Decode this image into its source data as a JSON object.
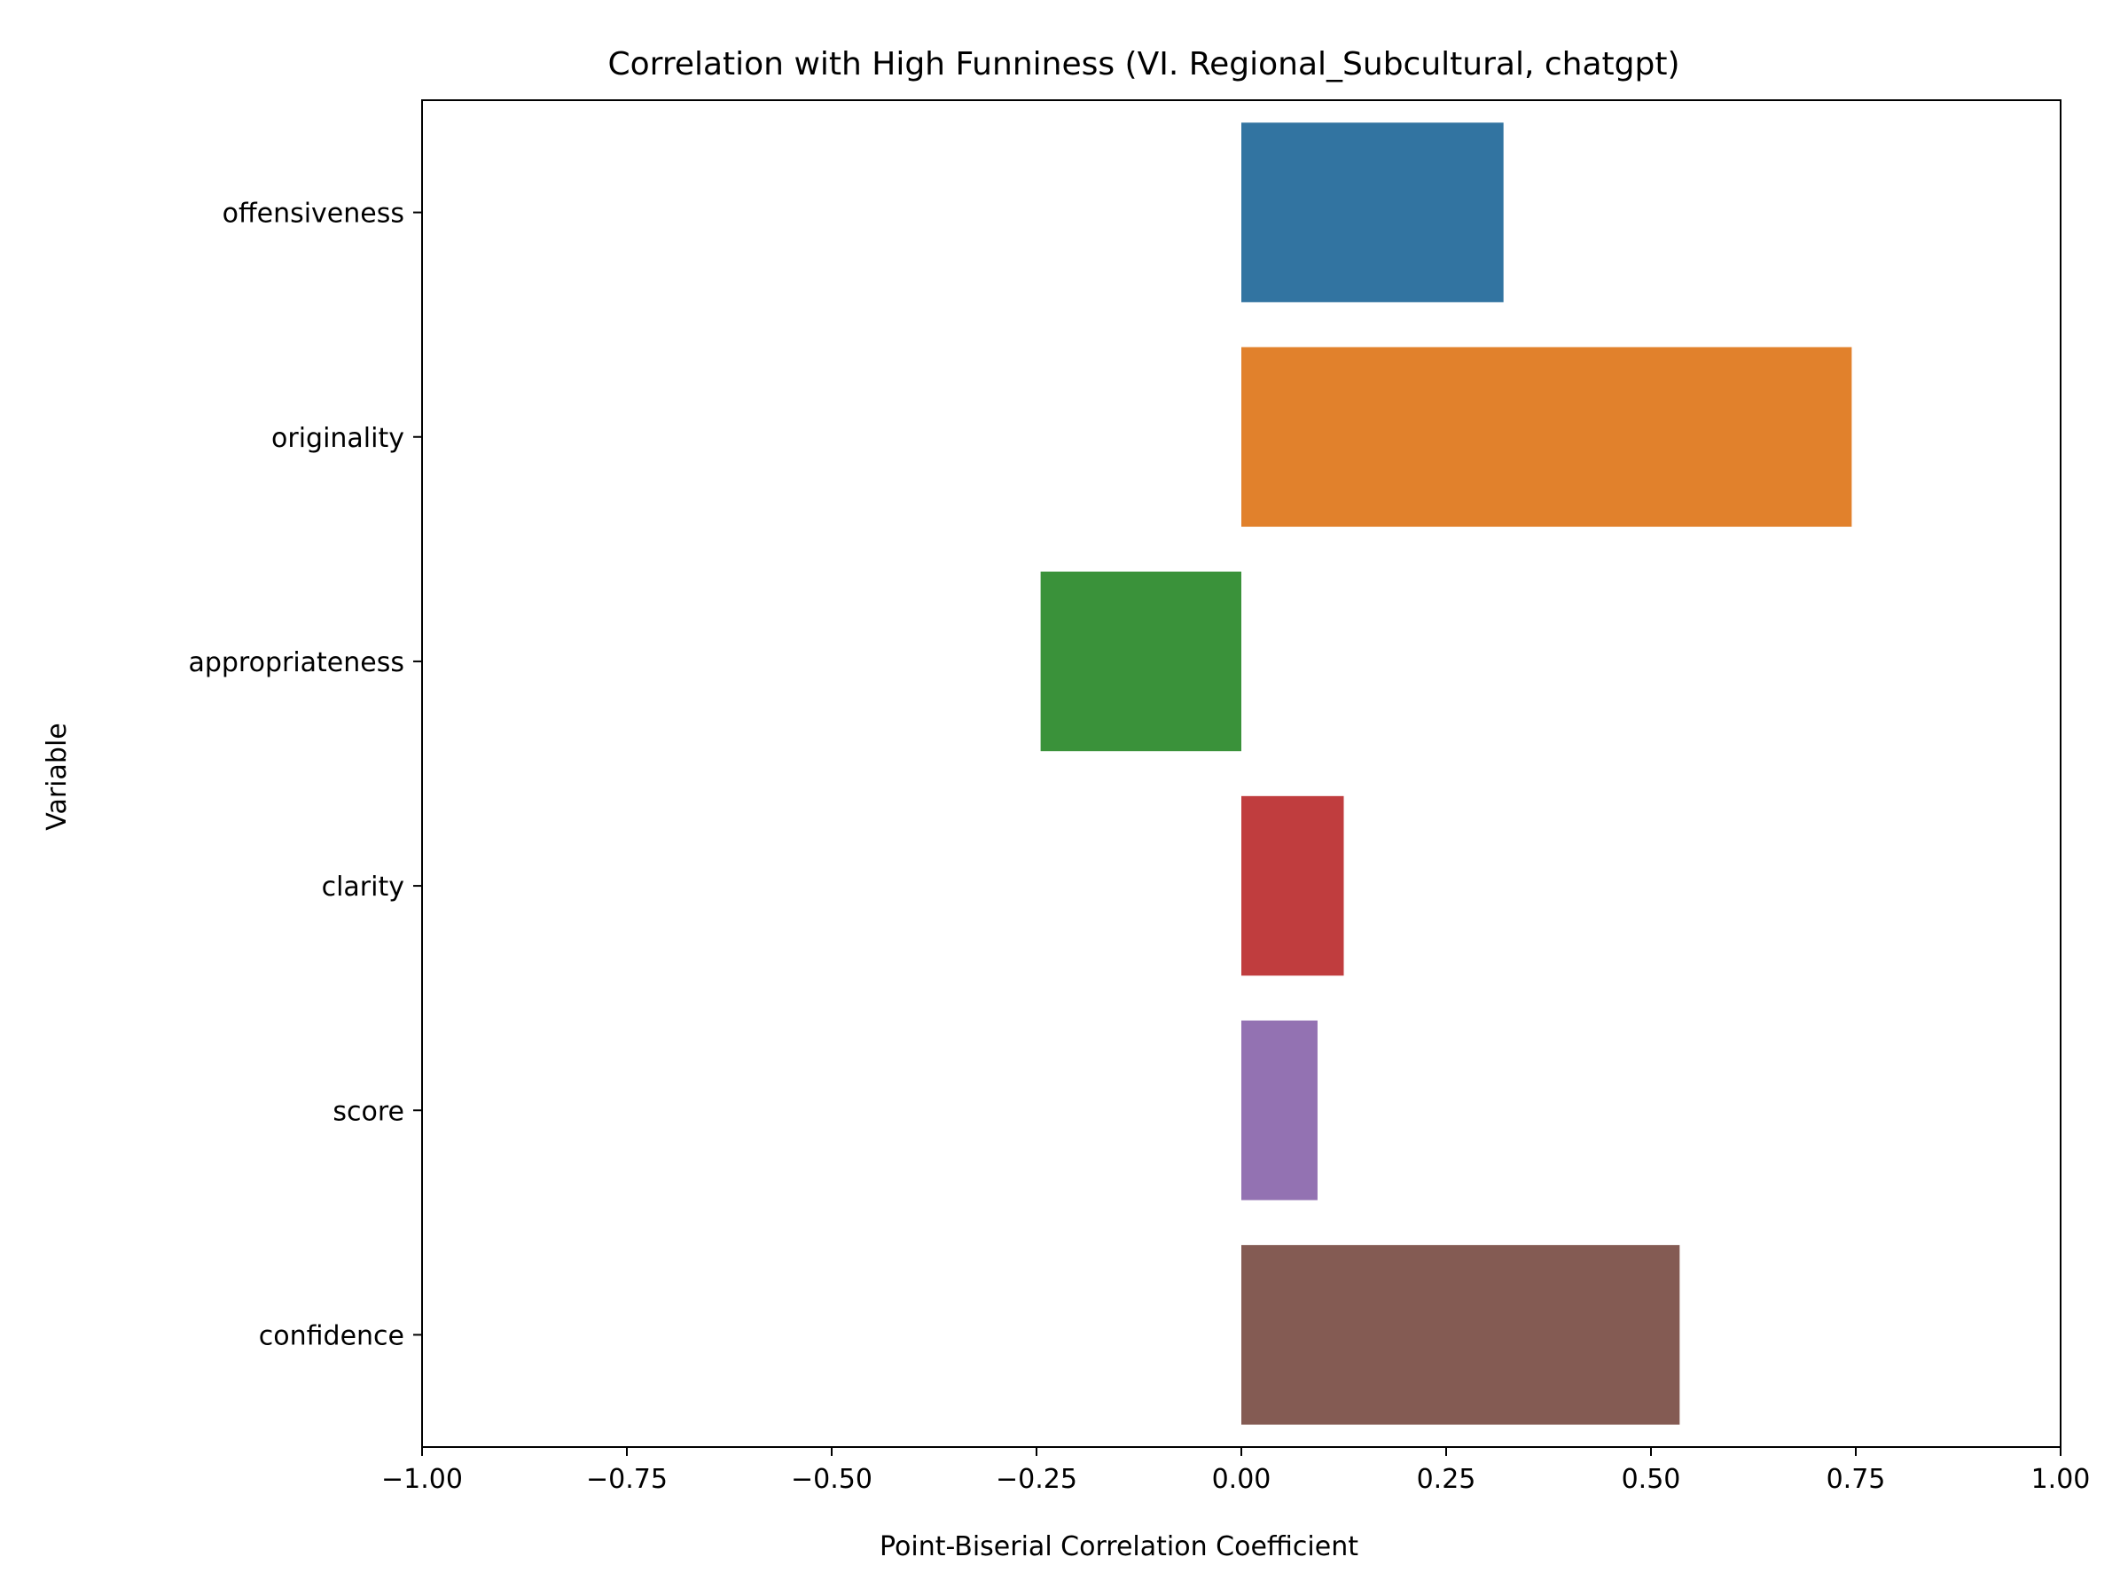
{
  "chart_data": {
    "type": "bar",
    "orientation": "horizontal",
    "title": "Correlation with High Funniness (VI. Regional_Subcultural, chatgpt)",
    "xlabel": "Point-Biserial Correlation Coefficient",
    "ylabel": "Variable",
    "xlim": [
      -1.0,
      1.0
    ],
    "xticks": [
      -1.0,
      -0.75,
      -0.5,
      -0.25,
      0.0,
      0.25,
      0.5,
      0.75,
      1.0
    ],
    "xtick_labels": [
      "−1.00",
      "−0.75",
      "−0.50",
      "−0.25",
      "0.00",
      "0.25",
      "0.50",
      "0.75",
      "1.00"
    ],
    "categories": [
      "offensiveness",
      "originality",
      "appropriateness",
      "clarity",
      "score",
      "confidence"
    ],
    "values": [
      0.32,
      0.745,
      -0.245,
      0.125,
      0.093,
      0.535
    ],
    "colors": [
      "#3274a1",
      "#e1812c",
      "#3a923a",
      "#c03d3e",
      "#9372b2",
      "#845b53"
    ],
    "grid": false,
    "legend": "none"
  }
}
